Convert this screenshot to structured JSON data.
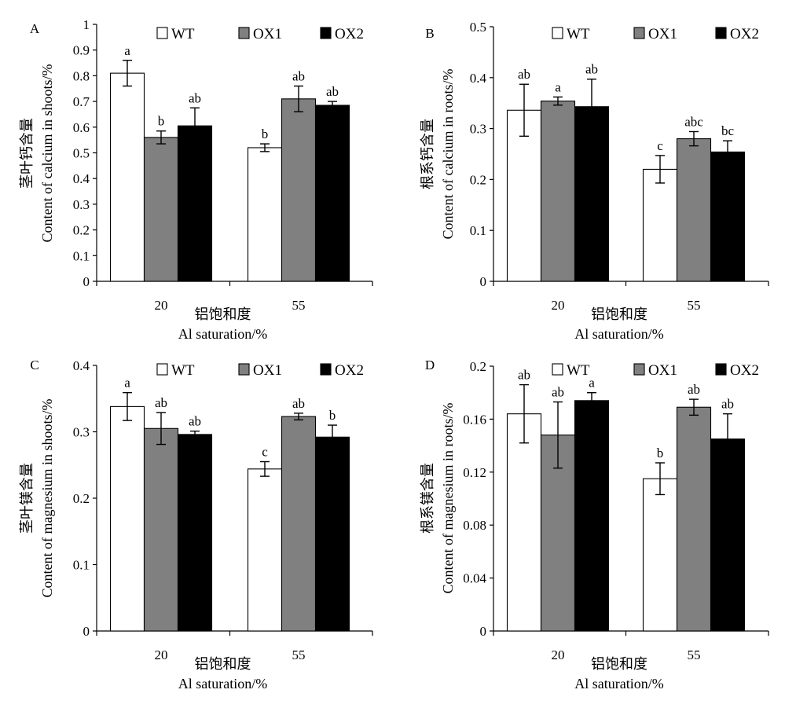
{
  "legend": [
    "WT",
    "OX1",
    "OX2"
  ],
  "colors": {
    "WT": "#ffffff",
    "OX1": "#808080",
    "OX2": "#000000"
  },
  "chart_data": [
    {
      "panel": "A",
      "type": "bar",
      "categories": [
        "20",
        "55"
      ],
      "xlabel_cn": "铝饱和度",
      "xlabel_en": "Al saturation/%",
      "ylabel_cn": "茎叶钙含量",
      "ylabel_en": "Content of calcium in shoots/%",
      "ylim": [
        0,
        1
      ],
      "yticks": [
        "0",
        "0.1",
        "0.2",
        "0.3",
        "0.4",
        "0.5",
        "0.6",
        "0.7",
        "0.8",
        "0.9",
        "1"
      ],
      "series": [
        {
          "name": "WT",
          "values": [
            0.81,
            0.52
          ],
          "errors": [
            0.05,
            0.015
          ],
          "labels": [
            "a",
            "b"
          ]
        },
        {
          "name": "OX1",
          "values": [
            0.56,
            0.71
          ],
          "errors": [
            0.025,
            0.05
          ],
          "labels": [
            "b",
            "ab"
          ]
        },
        {
          "name": "OX2",
          "values": [
            0.605,
            0.685
          ],
          "errors": [
            0.07,
            0.015
          ],
          "labels": [
            "ab",
            "ab"
          ]
        }
      ]
    },
    {
      "panel": "B",
      "type": "bar",
      "categories": [
        "20",
        "55"
      ],
      "xlabel_cn": "铝饱和度",
      "xlabel_en": "Al saturation/%",
      "ylabel_cn": "根系钙含量",
      "ylabel_en": "Content of calcium in roots/%",
      "ylim": [
        0,
        0.5
      ],
      "yticks": [
        "0",
        "0.1",
        "0.2",
        "0.3",
        "0.4",
        "0.5"
      ],
      "series": [
        {
          "name": "WT",
          "values": [
            0.336,
            0.22
          ],
          "errors": [
            0.051,
            0.027
          ],
          "labels": [
            "ab",
            "c"
          ]
        },
        {
          "name": "OX1",
          "values": [
            0.354,
            0.28
          ],
          "errors": [
            0.008,
            0.014
          ],
          "labels": [
            "a",
            "abc"
          ]
        },
        {
          "name": "OX2",
          "values": [
            0.343,
            0.254
          ],
          "errors": [
            0.054,
            0.022
          ],
          "labels": [
            "ab",
            "bc"
          ]
        }
      ]
    },
    {
      "panel": "C",
      "type": "bar",
      "categories": [
        "20",
        "55"
      ],
      "xlabel_cn": "铝饱和度",
      "xlabel_en": "Al saturation/%",
      "ylabel_cn": "茎叶镁含量",
      "ylabel_en": "Content of magnesium in shoots/%",
      "ylim": [
        0,
        0.4
      ],
      "yticks": [
        "0",
        "0.1",
        "0.2",
        "0.3",
        "0.4"
      ],
      "series": [
        {
          "name": "WT",
          "values": [
            0.338,
            0.244
          ],
          "errors": [
            0.021,
            0.011
          ],
          "labels": [
            "a",
            "c"
          ]
        },
        {
          "name": "OX1",
          "values": [
            0.305,
            0.323
          ],
          "errors": [
            0.024,
            0.005
          ],
          "labels": [
            "ab",
            "ab"
          ]
        },
        {
          "name": "OX2",
          "values": [
            0.296,
            0.292
          ],
          "errors": [
            0.005,
            0.018
          ],
          "labels": [
            "ab",
            "b"
          ]
        }
      ]
    },
    {
      "panel": "D",
      "type": "bar",
      "categories": [
        "20",
        "55"
      ],
      "xlabel_cn": "铝饱和度",
      "xlabel_en": "Al saturation/%",
      "ylabel_cn": "根系镁含量",
      "ylabel_en": "Content of magnesium in roots/%",
      "ylim": [
        0,
        0.2
      ],
      "yticks": [
        "0",
        "0.04",
        "0.08",
        "0.12",
        "0.16",
        "0.2"
      ],
      "series": [
        {
          "name": "WT",
          "values": [
            0.164,
            0.115
          ],
          "errors": [
            0.022,
            0.012
          ],
          "labels": [
            "ab",
            "b"
          ]
        },
        {
          "name": "OX1",
          "values": [
            0.148,
            0.169
          ],
          "errors": [
            0.025,
            0.006
          ],
          "labels": [
            "ab",
            "ab"
          ]
        },
        {
          "name": "OX2",
          "values": [
            0.174,
            0.145
          ],
          "errors": [
            0.006,
            0.019
          ],
          "labels": [
            "a",
            "ab"
          ]
        }
      ]
    }
  ]
}
